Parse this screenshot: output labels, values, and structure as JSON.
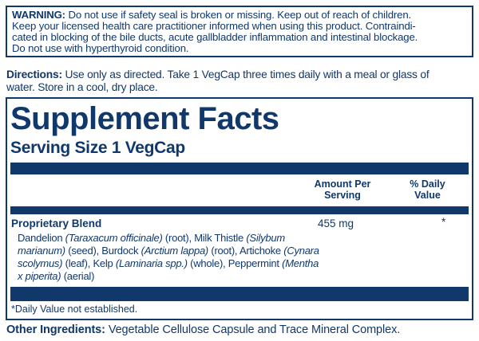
{
  "colors": {
    "navy": "#11386b",
    "bg": "#ffffff"
  },
  "warning": {
    "lines": [
      [
        {
          "t": "WARNING:",
          "b": true
        },
        {
          "t": " Do not use if safety seal is broken or missing. Keep out of reach of children."
        }
      ],
      [
        {
          "t": "Keep your licensed health care practitioner informed when using this product. Contraindi-"
        }
      ],
      [
        {
          "t": "cated in blocking of the bile ducts, acute gallbladder inflammation and intestinal blockage."
        }
      ],
      [
        {
          "t": "Do not use with hyperthyroid condition."
        }
      ]
    ]
  },
  "directions": {
    "lines": [
      [
        {
          "t": "Directions:",
          "b": true
        },
        {
          "t": " Use only as directed. Take 1 VegCap three times daily with a meal or glass of"
        }
      ],
      [
        {
          "t": "water. Store in a cool, dry place."
        }
      ]
    ]
  },
  "supplement_facts": {
    "title": "Supplement Facts",
    "serving_size": "Serving Size 1 VegCap",
    "columns": {
      "amount_per_serving": [
        "Amount Per",
        "Serving"
      ],
      "percent_daily_value": [
        "% Daily",
        "Value"
      ]
    },
    "rows": [
      {
        "name": "Proprietary Blend",
        "amount": "455 mg",
        "daily_value": "*",
        "components_lines": [
          [
            {
              "t": "Dandelion "
            },
            {
              "t": "(Taraxacum officinale)",
              "i": true
            },
            {
              "t": " (root), Milk Thistle "
            },
            {
              "t": "(Silybum",
              "i": true
            }
          ],
          [
            {
              "t": "marianum)",
              "i": true
            },
            {
              "t": " (seed), Burdock "
            },
            {
              "t": "(Arctium lappa)",
              "i": true
            },
            {
              "t": " (root), Artichoke "
            },
            {
              "t": "(Cynara",
              "i": true
            }
          ],
          [
            {
              "t": "scolymus)",
              "i": true
            },
            {
              "t": " (leaf), Kelp "
            },
            {
              "t": "(Laminaria spp.)",
              "i": true
            },
            {
              "t": " (whole), Peppermint "
            },
            {
              "t": "(Mentha",
              "i": true
            }
          ],
          [
            {
              "t": "x piperita)",
              "i": true
            },
            {
              "t": " (aerial)"
            }
          ]
        ]
      }
    ],
    "footnote": "*Daily Value not established."
  },
  "other_ingredients": {
    "runs": [
      {
        "t": "Other Ingredients:",
        "b": true
      },
      {
        "t": " Vegetable Cellulose Capsule and Trace Mineral Complex."
      }
    ]
  }
}
